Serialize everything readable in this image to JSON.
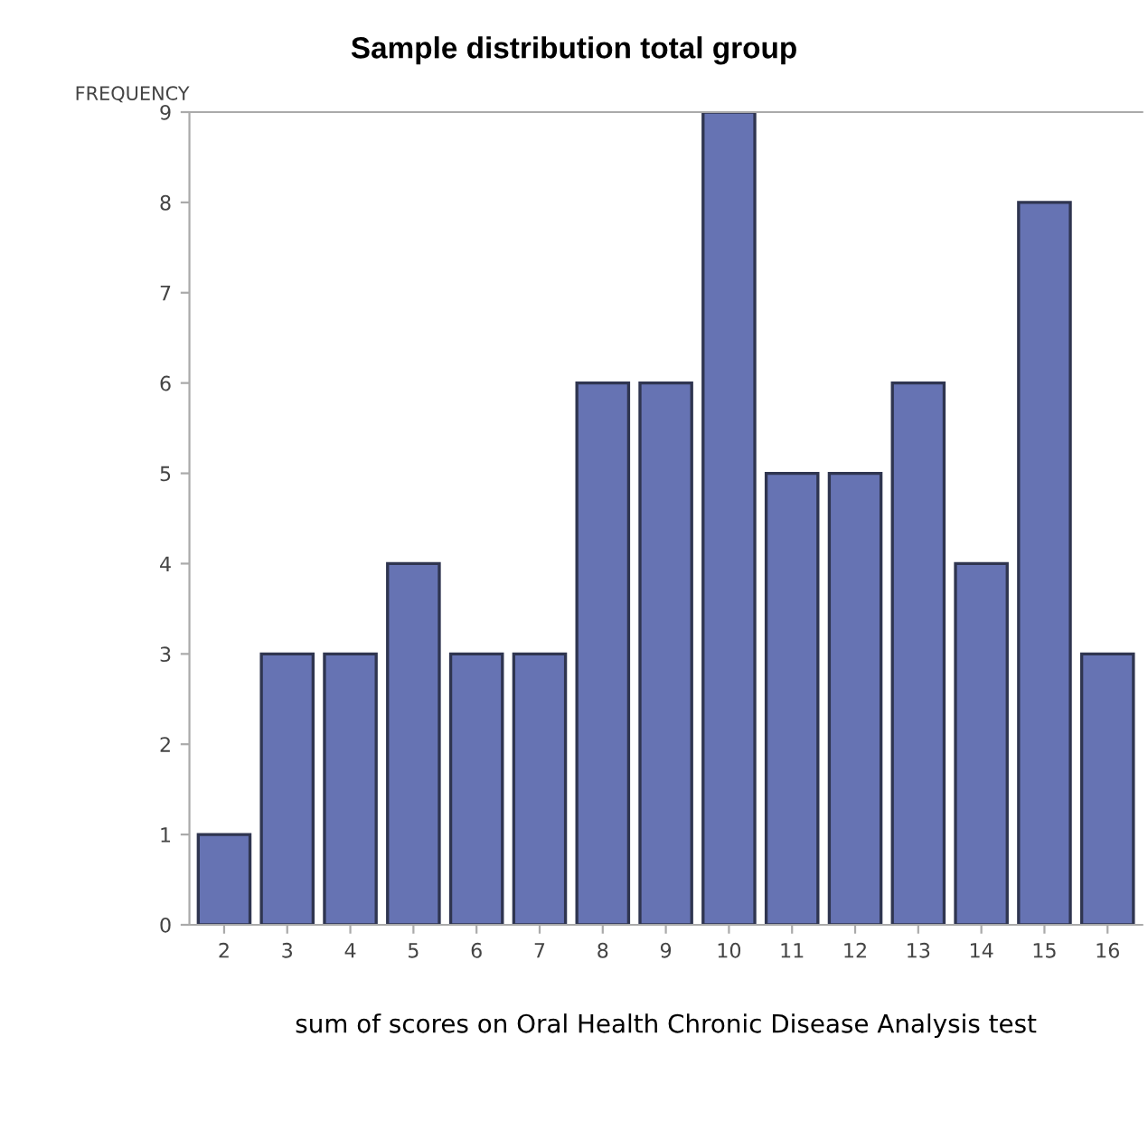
{
  "chart_data": {
    "type": "bar",
    "title": "Sample distribution total group",
    "xlabel": "sum of scores on Oral Health Chronic Disease Analysis test",
    "ylabel": "FREQUENCY",
    "categories": [
      "2",
      "3",
      "4",
      "5",
      "6",
      "7",
      "8",
      "9",
      "10",
      "11",
      "12",
      "13",
      "14",
      "15",
      "16"
    ],
    "values": [
      1,
      3,
      3,
      4,
      3,
      3,
      6,
      6,
      9,
      5,
      5,
      6,
      4,
      8,
      3
    ],
    "color": "#6673b3",
    "ylim": [
      0,
      9
    ],
    "yticks": [
      0,
      1,
      2,
      3,
      4,
      5,
      6,
      7,
      8,
      9
    ],
    "grid": false,
    "legend": false
  }
}
